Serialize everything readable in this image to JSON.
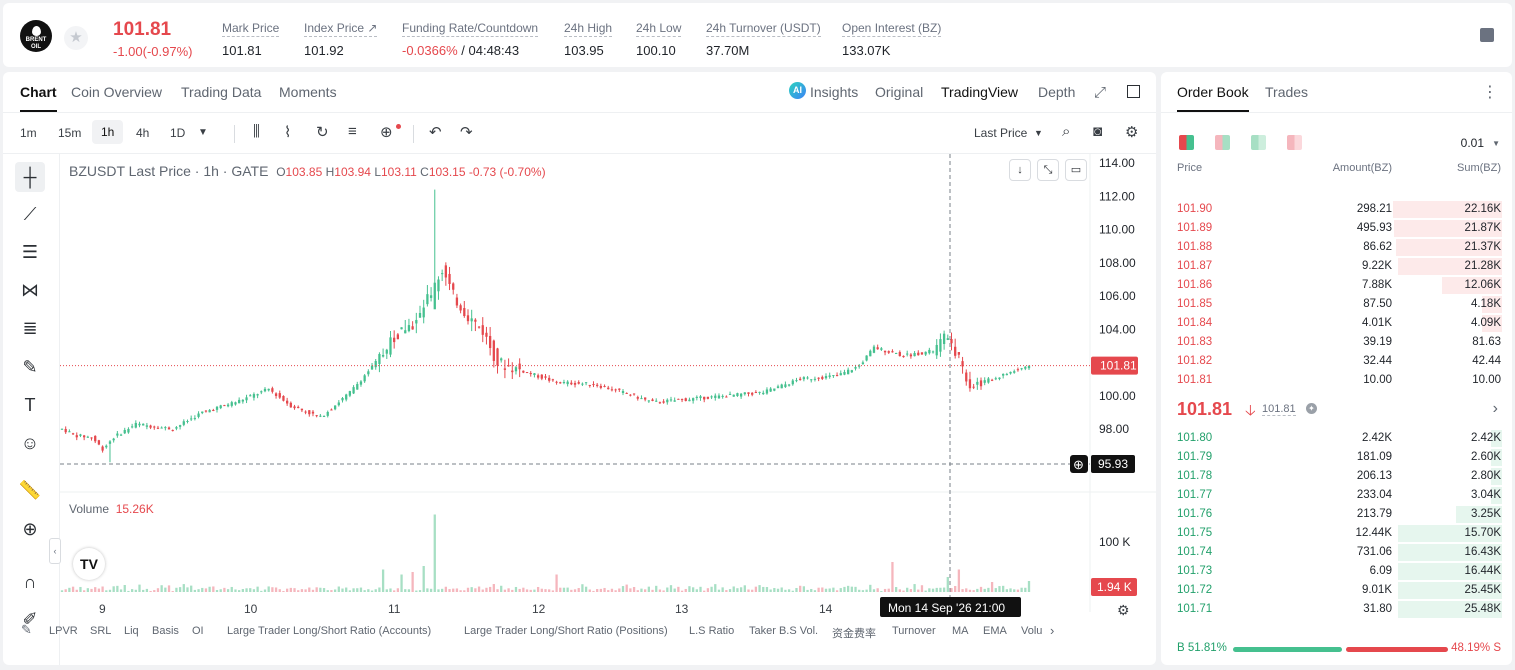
{
  "ticker": {
    "logo_text": "BRENT OIL",
    "last_price": "101.81",
    "change": "-1.00(-0.97%)",
    "stats": [
      {
        "label": "Mark Price",
        "value": "101.81"
      },
      {
        "label": "Index Price ↗",
        "value": "101.92"
      },
      {
        "label": "Funding Rate/Countdown",
        "value_neg": "-0.0366%",
        "value": " / 04:48:43"
      },
      {
        "label": "24h High",
        "value": "103.95"
      },
      {
        "label": "24h Low",
        "value": "100.10"
      },
      {
        "label": "24h Turnover (USDT)",
        "value": "37.70M"
      },
      {
        "label": "Open Interest (BZ)",
        "value": "133.07K"
      }
    ]
  },
  "chart_tabs": [
    "Chart",
    "Coin Overview",
    "Trading Data",
    "Moments"
  ],
  "view_tabs": {
    "ai_badge": "AI",
    "insights": "Insights",
    "original": "Original",
    "tradingview": "TradingView",
    "depth": "Depth"
  },
  "timeframes": [
    "1m",
    "15m",
    "1h",
    "4h",
    "1D"
  ],
  "price_type": "Last Price",
  "legend": {
    "title": "BZUSDT Last Price · 1h · GATE",
    "o": "O",
    "o_val": "103.85",
    "h": "H",
    "h_val": "103.94",
    "l": "L",
    "l_val": "103.11",
    "c": "C",
    "c_val": "103.15",
    "chg": "-0.73 (-0.70%)"
  },
  "volume_legend": {
    "label": "Volume",
    "value": "15.26K"
  },
  "price_axis": [
    "114.00",
    "112.00",
    "110.00",
    "108.00",
    "106.00",
    "104.00",
    "102.00",
    "100.00",
    "98.00"
  ],
  "volume_axis": "100 K",
  "current_price_tag": "101.81",
  "crosshair_price_tag": "95.93",
  "volume_tag": "1.94 K",
  "time_axis": [
    "9",
    "10",
    "11",
    "12",
    "13",
    "14"
  ],
  "crosshair_time": "Mon 14 Sep '26   21:00",
  "bottom_indicators": [
    "LPVR",
    "SRL",
    "Liq",
    "Basis",
    "OI",
    "Large Trader Long/Short Ratio (Accounts)",
    "Large Trader Long/Short Ratio (Positions)",
    "L.S Ratio",
    "Taker B.S Vol.",
    "资金费率",
    "Turnover",
    "MA",
    "EMA",
    "Volu"
  ],
  "chart_data": {
    "type": "candlestick",
    "title": "BZUSDT Last Price · 1h · GATE",
    "ylim": [
      96,
      114
    ],
    "x_ticks": [
      "9",
      "10",
      "11",
      "12",
      "13",
      "14"
    ],
    "anchors": [
      {
        "t": 0,
        "p": 98.0
      },
      {
        "t": 4,
        "p": 97.6
      },
      {
        "t": 8,
        "p": 97.5
      },
      {
        "t": 11,
        "p": 96.8
      },
      {
        "t": 14,
        "p": 97.5
      },
      {
        "t": 20,
        "p": 98.3
      },
      {
        "t": 30,
        "p": 98.0
      },
      {
        "t": 38,
        "p": 99.0
      },
      {
        "t": 48,
        "p": 99.7
      },
      {
        "t": 56,
        "p": 100.4
      },
      {
        "t": 62,
        "p": 99.4
      },
      {
        "t": 70,
        "p": 98.7
      },
      {
        "t": 78,
        "p": 100.2
      },
      {
        "t": 85,
        "p": 102.0
      },
      {
        "t": 92,
        "p": 104.0
      },
      {
        "t": 96,
        "p": 104.4
      },
      {
        "t": 100,
        "p": 106.2
      },
      {
        "t": 103,
        "p": 107.6
      },
      {
        "t": 106,
        "p": 106.0
      },
      {
        "t": 110,
        "p": 104.8
      },
      {
        "t": 114,
        "p": 103.9
      },
      {
        "t": 118,
        "p": 102.0
      },
      {
        "t": 126,
        "p": 101.4
      },
      {
        "t": 134,
        "p": 100.8
      },
      {
        "t": 144,
        "p": 100.7
      },
      {
        "t": 152,
        "p": 100.2
      },
      {
        "t": 160,
        "p": 99.6
      },
      {
        "t": 170,
        "p": 99.8
      },
      {
        "t": 180,
        "p": 100.0
      },
      {
        "t": 190,
        "p": 100.2
      },
      {
        "t": 200,
        "p": 101.0
      },
      {
        "t": 210,
        "p": 101.2
      },
      {
        "t": 216,
        "p": 101.8
      },
      {
        "t": 220,
        "p": 102.9
      },
      {
        "t": 228,
        "p": 102.4
      },
      {
        "t": 236,
        "p": 102.7
      },
      {
        "t": 240,
        "p": 103.7
      },
      {
        "t": 243,
        "p": 102.2
      },
      {
        "t": 246,
        "p": 100.6
      },
      {
        "t": 252,
        "p": 101.0
      },
      {
        "t": 258,
        "p": 101.5
      },
      {
        "t": 262,
        "p": 101.81
      }
    ],
    "spike": {
      "t": 101,
      "high": 112.4
    },
    "dip": {
      "t": 13,
      "low": 96.0
    },
    "volume": {
      "unit": "K",
      "max_axis": 100,
      "base": [
        3,
        5,
        7,
        9,
        6,
        8
      ],
      "spikes": [
        {
          "t": 101,
          "v": 155
        },
        {
          "t": 87,
          "v": 45
        },
        {
          "t": 98,
          "v": 52
        },
        {
          "t": 92,
          "v": 35
        },
        {
          "t": 95,
          "v": 40
        },
        {
          "t": 225,
          "v": 60
        },
        {
          "t": 243,
          "v": 45
        },
        {
          "t": 240,
          "v": 30
        },
        {
          "t": 134,
          "v": 35
        },
        {
          "t": 252,
          "v": 20
        },
        {
          "t": 262,
          "v": 22
        }
      ]
    }
  },
  "order_book": {
    "tabs": [
      "Order Book",
      "Trades"
    ],
    "precision": "0.01",
    "headers": [
      "Price",
      "Amount(BZ)",
      "Sum(BZ)"
    ],
    "asks": [
      {
        "price": "101.90",
        "amount": "298.21",
        "sum": "22.16K",
        "depth": 0.91
      },
      {
        "price": "101.89",
        "amount": "495.93",
        "sum": "21.87K",
        "depth": 0.9
      },
      {
        "price": "101.88",
        "amount": "86.62",
        "sum": "21.37K",
        "depth": 0.88
      },
      {
        "price": "101.87",
        "amount": "9.22K",
        "sum": "21.28K",
        "depth": 0.87
      },
      {
        "price": "101.86",
        "amount": "7.88K",
        "sum": "12.06K",
        "depth": 0.5
      },
      {
        "price": "101.85",
        "amount": "87.50",
        "sum": "4.18K",
        "depth": 0.17
      },
      {
        "price": "101.84",
        "amount": "4.01K",
        "sum": "4.09K",
        "depth": 0.17
      },
      {
        "price": "101.83",
        "amount": "39.19",
        "sum": "81.63",
        "depth": 0.0
      },
      {
        "price": "101.82",
        "amount": "32.44",
        "sum": "42.44",
        "depth": 0.0
      },
      {
        "price": "101.81",
        "amount": "10.00",
        "sum": "10.00",
        "depth": 0.0
      }
    ],
    "mid_price": "101.81",
    "mark_price": "101.81",
    "bids": [
      {
        "price": "101.80",
        "amount": "2.42K",
        "sum": "2.42K",
        "depth": 0.09
      },
      {
        "price": "101.79",
        "amount": "181.09",
        "sum": "2.60K",
        "depth": 0.09
      },
      {
        "price": "101.78",
        "amount": "206.13",
        "sum": "2.80K",
        "depth": 0.09
      },
      {
        "price": "101.77",
        "amount": "233.04",
        "sum": "3.04K",
        "depth": 0.09
      },
      {
        "price": "101.76",
        "amount": "213.79",
        "sum": "3.25K",
        "depth": 0.38
      },
      {
        "price": "101.75",
        "amount": "12.44K",
        "sum": "15.70K",
        "depth": 0.87
      },
      {
        "price": "101.74",
        "amount": "731.06",
        "sum": "16.43K",
        "depth": 0.87
      },
      {
        "price": "101.73",
        "amount": "6.09",
        "sum": "16.44K",
        "depth": 0.87
      },
      {
        "price": "101.72",
        "amount": "9.01K",
        "sum": "25.45K",
        "depth": 0.87
      },
      {
        "price": "101.71",
        "amount": "31.80",
        "sum": "25.48K",
        "depth": 0.87
      }
    ],
    "buy_ratio": "B 51.81%",
    "sell_ratio": "48.19% S",
    "buy_fraction": 0.5181
  },
  "colors": {
    "up": "#45c08f",
    "down": "#e5484d",
    "up_vol": "#a7dfc4",
    "down_vol": "#f5b6bd"
  }
}
